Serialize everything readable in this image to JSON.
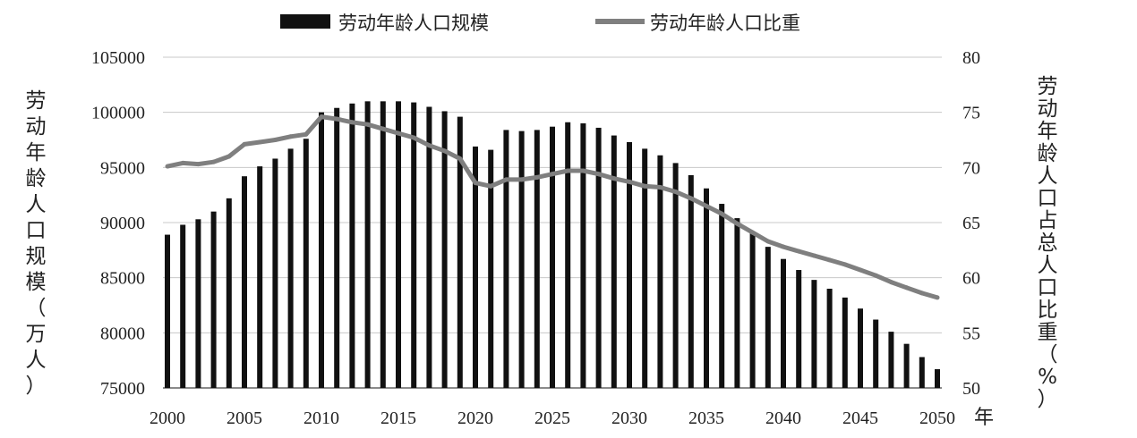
{
  "chart_data": {
    "type": "bar+line",
    "x": [
      2000,
      2001,
      2002,
      2003,
      2004,
      2005,
      2006,
      2007,
      2008,
      2009,
      2010,
      2011,
      2012,
      2013,
      2014,
      2015,
      2016,
      2017,
      2018,
      2019,
      2020,
      2021,
      2022,
      2023,
      2024,
      2025,
      2026,
      2027,
      2028,
      2029,
      2030,
      2031,
      2032,
      2033,
      2034,
      2035,
      2036,
      2037,
      2038,
      2039,
      2040,
      2041,
      2042,
      2043,
      2044,
      2045,
      2046,
      2047,
      2048,
      2049,
      2050
    ],
    "x_ticks": [
      "2000",
      "2005",
      "2010",
      "2015",
      "2020",
      "2025",
      "2030",
      "2035",
      "2040",
      "2045",
      "2050"
    ],
    "x_unit": "年",
    "series": [
      {
        "name": "劳动年龄人口规模",
        "kind": "bar",
        "axis": "left",
        "color": "#111111",
        "values": [
          88900,
          89800,
          90300,
          91000,
          92200,
          94200,
          95100,
          95800,
          96700,
          97600,
          100000,
          100400,
          100800,
          101000,
          101000,
          101000,
          100900,
          100500,
          100100,
          99600,
          96900,
          96600,
          98400,
          98300,
          98400,
          98700,
          99100,
          99000,
          98600,
          97900,
          97300,
          96700,
          96100,
          95400,
          94300,
          93100,
          91700,
          90400,
          89100,
          87800,
          86700,
          85700,
          84800,
          84000,
          83200,
          82200,
          81200,
          80100,
          79000,
          77800,
          76700
        ]
      },
      {
        "name": "劳动年龄人口比重",
        "kind": "line",
        "axis": "right",
        "color": "#7f7f7f",
        "values": [
          70.1,
          70.4,
          70.3,
          70.5,
          71.0,
          72.1,
          72.3,
          72.5,
          72.8,
          73.0,
          74.6,
          74.4,
          74.1,
          73.9,
          73.5,
          73.1,
          72.7,
          72.0,
          71.5,
          70.8,
          68.6,
          68.3,
          68.9,
          68.9,
          69.1,
          69.4,
          69.7,
          69.7,
          69.4,
          69.0,
          68.7,
          68.3,
          68.2,
          67.8,
          67.2,
          66.5,
          65.8,
          64.9,
          64.1,
          63.3,
          62.8,
          62.4,
          62.0,
          61.6,
          61.2,
          60.7,
          60.2,
          59.6,
          59.1,
          58.6,
          58.2
        ]
      }
    ],
    "y_left": {
      "label": "劳动年龄人口规模（万人）",
      "lim": [
        75000,
        105000
      ],
      "ticks": [
        "75000",
        "80000",
        "85000",
        "90000",
        "95000",
        "100000",
        "105000"
      ]
    },
    "y_right": {
      "label": "劳动年龄人口占总人口比重（%）",
      "lim": [
        50,
        80
      ],
      "ticks": [
        "50",
        "55",
        "60",
        "65",
        "70",
        "75",
        "80"
      ]
    },
    "grid": true,
    "legend_position": "top-center"
  }
}
